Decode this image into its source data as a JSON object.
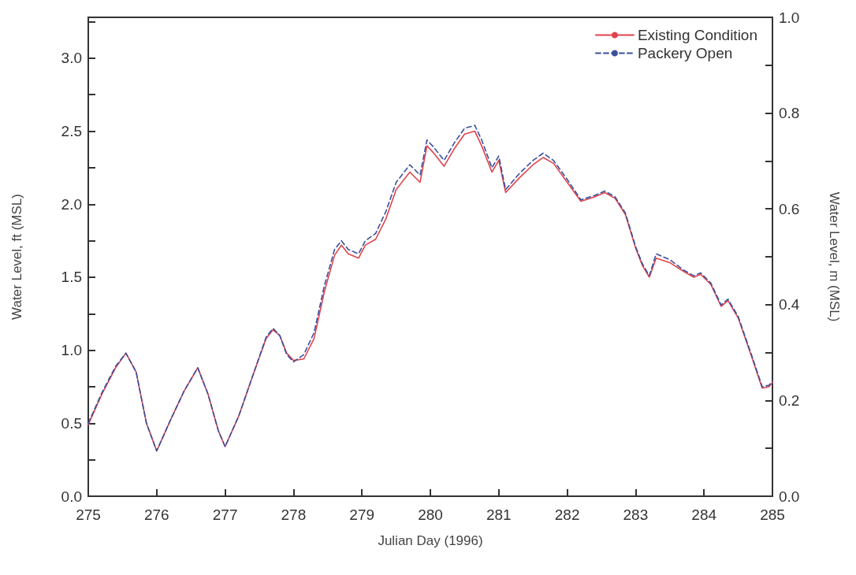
{
  "chart_data": {
    "type": "line",
    "xlabel": "Julian Day (1996)",
    "ylabel": "Water Level, ft (MSL)",
    "y2label": "Water Level, m (MSL)",
    "x": [
      275.0,
      275.2,
      275.4,
      275.55,
      275.7,
      275.85,
      276.0,
      276.2,
      276.4,
      276.6,
      276.75,
      276.9,
      277.0,
      277.2,
      277.4,
      277.6,
      277.7,
      277.8,
      277.9,
      278.0,
      278.15,
      278.3,
      278.45,
      278.6,
      278.7,
      278.8,
      278.95,
      279.05,
      279.2,
      279.35,
      279.5,
      279.7,
      279.85,
      279.95,
      280.05,
      280.2,
      280.35,
      280.5,
      280.65,
      280.75,
      280.9,
      281.0,
      281.1,
      281.3,
      281.5,
      281.65,
      281.8,
      282.0,
      282.2,
      282.4,
      282.55,
      282.7,
      282.85,
      283.0,
      283.1,
      283.2,
      283.3,
      283.5,
      283.7,
      283.85,
      283.95,
      284.1,
      284.25,
      284.35,
      284.5,
      284.7,
      284.85,
      284.95,
      285.0
    ],
    "series": [
      {
        "name": "Existing Condition",
        "color": "#e0434c",
        "line_style": "solid",
        "values": [
          0.49,
          0.7,
          0.88,
          0.98,
          0.85,
          0.5,
          0.31,
          0.52,
          0.72,
          0.88,
          0.7,
          0.45,
          0.34,
          0.55,
          0.82,
          1.08,
          1.14,
          1.1,
          0.98,
          0.93,
          0.94,
          1.08,
          1.4,
          1.65,
          1.72,
          1.66,
          1.63,
          1.72,
          1.76,
          1.9,
          2.1,
          2.22,
          2.15,
          2.4,
          2.35,
          2.26,
          2.38,
          2.48,
          2.5,
          2.4,
          2.22,
          2.3,
          2.08,
          2.18,
          2.27,
          2.32,
          2.28,
          2.15,
          2.02,
          2.05,
          2.08,
          2.04,
          1.93,
          1.7,
          1.58,
          1.5,
          1.63,
          1.6,
          1.54,
          1.5,
          1.52,
          1.45,
          1.3,
          1.34,
          1.22,
          0.95,
          0.74,
          0.75,
          0.78
        ]
      },
      {
        "name": "Packery Open",
        "color": "#3a4f9e",
        "line_style": "dashed",
        "values": [
          0.5,
          0.71,
          0.89,
          0.98,
          0.85,
          0.5,
          0.31,
          0.52,
          0.72,
          0.88,
          0.7,
          0.45,
          0.34,
          0.55,
          0.82,
          1.09,
          1.15,
          1.1,
          0.97,
          0.92,
          0.97,
          1.12,
          1.44,
          1.69,
          1.75,
          1.69,
          1.66,
          1.75,
          1.8,
          1.95,
          2.15,
          2.27,
          2.2,
          2.44,
          2.39,
          2.3,
          2.42,
          2.52,
          2.54,
          2.44,
          2.25,
          2.33,
          2.1,
          2.21,
          2.3,
          2.35,
          2.3,
          2.17,
          2.03,
          2.06,
          2.09,
          2.05,
          1.94,
          1.71,
          1.59,
          1.51,
          1.66,
          1.62,
          1.55,
          1.51,
          1.53,
          1.46,
          1.31,
          1.35,
          1.23,
          0.96,
          0.75,
          0.76,
          0.79
        ]
      }
    ],
    "xlim": [
      275,
      285
    ],
    "xticks": [
      275,
      276,
      277,
      278,
      279,
      280,
      281,
      282,
      283,
      284,
      285
    ],
    "ylim": [
      0,
      3.28
    ],
    "yticks": [
      {
        "value": 0,
        "label": "0.0"
      },
      {
        "value": 0.25,
        "label": null
      },
      {
        "value": 0.5,
        "label": "0.5"
      },
      {
        "value": 0.75,
        "label": null
      },
      {
        "value": 1,
        "label": "1.0"
      },
      {
        "value": 1.25,
        "label": null
      },
      {
        "value": 1.5,
        "label": "1.5"
      },
      {
        "value": 1.75,
        "label": null
      },
      {
        "value": 2,
        "label": "2.0"
      },
      {
        "value": 2.25,
        "label": null
      },
      {
        "value": 2.5,
        "label": "2.5"
      },
      {
        "value": 2.75,
        "label": null
      },
      {
        "value": 3,
        "label": "3.0"
      },
      {
        "value": 3.25,
        "label": null
      }
    ],
    "y2lim": [
      0,
      1
    ],
    "y2ticks": [
      {
        "value": 0,
        "label": "0.0"
      },
      {
        "value": 0.1,
        "label": null
      },
      {
        "value": 0.2,
        "label": "0.2"
      },
      {
        "value": 0.3,
        "label": null
      },
      {
        "value": 0.4,
        "label": "0.4"
      },
      {
        "value": 0.5,
        "label": null
      },
      {
        "value": 0.6,
        "label": "0.6"
      },
      {
        "value": 0.7,
        "label": null
      },
      {
        "value": 0.8,
        "label": "0.8"
      },
      {
        "value": 0.9,
        "label": null
      },
      {
        "value": 1,
        "label": "1.0"
      }
    ],
    "legend": "top right",
    "grid": false,
    "marker": "none"
  }
}
